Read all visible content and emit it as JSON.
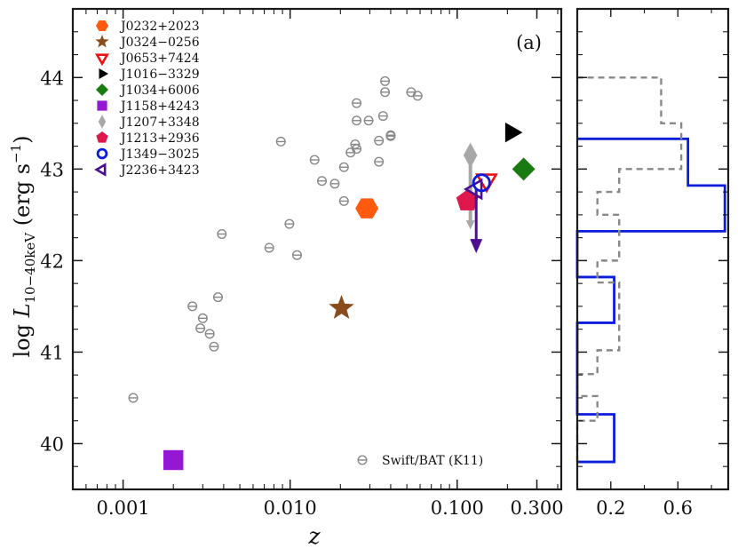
{
  "chart_data": [
    {
      "type": "scatter",
      "panel_label": "(a)",
      "xlabel": "z",
      "ylabel": "log L10−40keV (erg s−1)",
      "ylabel_parts": {
        "log": "log ",
        "L": "L",
        "sub": "10−40keV",
        "units": " (erg s",
        "exp": "−1",
        "close": ")"
      },
      "xscale": "log",
      "xlim": [
        0.0005,
        0.42
      ],
      "ylim": [
        39.5,
        44.75
      ],
      "xticks": [
        0.001,
        0.01,
        0.1,
        0.3
      ],
      "xtick_labels": [
        "0.001",
        "0.010",
        "0.100",
        "0.300"
      ],
      "yticks": [
        40,
        41,
        42,
        43,
        44
      ],
      "ytick_labels": [
        "40",
        "41",
        "42",
        "43",
        "44"
      ],
      "sources": [
        {
          "name": "J0232+2023",
          "marker": "hexagon",
          "color": "#ff5a0e",
          "z": 0.0288,
          "logL": 42.57
        },
        {
          "name": "J0324−0256",
          "marker": "star",
          "color": "#8b4c1c",
          "z": 0.0203,
          "logL": 41.48
        },
        {
          "name": "J0653+7424",
          "marker": "triangle-down-open",
          "color": "#ee1111",
          "z": 0.15,
          "logL": 42.88
        },
        {
          "name": "J1016−3329",
          "marker": "triangle-right",
          "color": "#000000",
          "z": 0.21,
          "logL": 43.4
        },
        {
          "name": "J1034+6006",
          "marker": "diamond",
          "color": "#1a7a12",
          "z": 0.25,
          "logL": 43.0
        },
        {
          "name": "J1158+4243",
          "marker": "square",
          "color": "#9417d4",
          "z": 0.002,
          "logL": 39.82
        },
        {
          "name": "J1207+3348",
          "marker": "thin-diamond",
          "color": "#a8a8a8",
          "z": 0.12,
          "logL": 43.15,
          "range": [
            42.4,
            43.2
          ]
        },
        {
          "name": "J1213+2936",
          "marker": "pentagon",
          "color": "#e0174a",
          "z": 0.115,
          "logL": 42.65
        },
        {
          "name": "J1349−3025",
          "marker": "circle-open",
          "color": "#0b1cdb",
          "z": 0.14,
          "logL": 42.85
        },
        {
          "name": "J2236+3423",
          "marker": "triangle-left-open",
          "color": "#4b0f8f",
          "z": 0.13,
          "logL": 42.78,
          "upper_to": 42.1
        }
      ],
      "swift_bat": {
        "label": "Swift/BAT (K11)",
        "color": "#888888",
        "points": [
          {
            "z": 0.00115,
            "logL": 40.5
          },
          {
            "z": 0.0026,
            "logL": 41.5
          },
          {
            "z": 0.003,
            "logL": 41.37
          },
          {
            "z": 0.0029,
            "logL": 41.26
          },
          {
            "z": 0.0033,
            "logL": 41.2
          },
          {
            "z": 0.0035,
            "logL": 41.06
          },
          {
            "z": 0.0037,
            "logL": 41.6
          },
          {
            "z": 0.0039,
            "logL": 42.29
          },
          {
            "z": 0.0075,
            "logL": 42.14
          },
          {
            "z": 0.0088,
            "logL": 43.3
          },
          {
            "z": 0.0099,
            "logL": 42.4
          },
          {
            "z": 0.011,
            "logL": 42.06
          },
          {
            "z": 0.014,
            "logL": 43.1
          },
          {
            "z": 0.0155,
            "logL": 42.87
          },
          {
            "z": 0.0185,
            "logL": 42.84
          },
          {
            "z": 0.021,
            "logL": 43.02
          },
          {
            "z": 0.021,
            "logL": 42.65
          },
          {
            "z": 0.023,
            "logL": 43.18
          },
          {
            "z": 0.025,
            "logL": 43.22
          },
          {
            "z": 0.0245,
            "logL": 43.27
          },
          {
            "z": 0.025,
            "logL": 43.72
          },
          {
            "z": 0.025,
            "logL": 43.53
          },
          {
            "z": 0.0295,
            "logL": 43.53
          },
          {
            "z": 0.034,
            "logL": 43.31
          },
          {
            "z": 0.034,
            "logL": 43.08
          },
          {
            "z": 0.036,
            "logL": 43.58
          },
          {
            "z": 0.037,
            "logL": 43.84
          },
          {
            "z": 0.037,
            "logL": 43.96
          },
          {
            "z": 0.04,
            "logL": 43.36
          },
          {
            "z": 0.04,
            "logL": 43.37
          },
          {
            "z": 0.053,
            "logL": 43.84
          },
          {
            "z": 0.058,
            "logL": 43.8
          }
        ]
      }
    },
    {
      "type": "histogram",
      "orientation": "horizontal",
      "xticks": [
        0.2,
        0.6
      ],
      "xtick_labels": [
        "0.2",
        "0.6"
      ],
      "xlim": [
        0,
        0.9
      ],
      "series": [
        {
          "name": "sample",
          "color": "#0b1cdb",
          "style": "solid",
          "bins": [
            {
              "y0": 39.8,
              "y1": 40.32,
              "value": 0.22
            },
            {
              "y0": 40.32,
              "y1": 41.32,
              "value": 0.0
            },
            {
              "y0": 41.32,
              "y1": 41.82,
              "value": 0.22
            },
            {
              "y0": 41.82,
              "y1": 42.32,
              "value": 0.0
            },
            {
              "y0": 42.32,
              "y1": 42.82,
              "value": 0.88
            },
            {
              "y0": 42.82,
              "y1": 43.33,
              "value": 0.66
            }
          ]
        },
        {
          "name": "Swift/BAT (K11)",
          "color": "#888888",
          "style": "dashed",
          "bins": [
            {
              "y0": 39.8,
              "y1": 40.25,
              "value": 0.0
            },
            {
              "y0": 40.25,
              "y1": 40.52,
              "value": 0.12
            },
            {
              "y0": 40.52,
              "y1": 40.76,
              "value": 0.0
            },
            {
              "y0": 40.76,
              "y1": 41.02,
              "value": 0.12
            },
            {
              "y0": 41.02,
              "y1": 41.76,
              "value": 0.25
            },
            {
              "y0": 41.76,
              "y1": 42.0,
              "value": 0.12
            },
            {
              "y0": 42.0,
              "y1": 42.5,
              "value": 0.25
            },
            {
              "y0": 42.5,
              "y1": 42.75,
              "value": 0.12
            },
            {
              "y0": 42.75,
              "y1": 43.0,
              "value": 0.25
            },
            {
              "y0": 43.0,
              "y1": 43.25,
              "value": 0.62
            },
            {
              "y0": 43.25,
              "y1": 43.5,
              "value": 0.62
            },
            {
              "y0": 43.5,
              "y1": 44.0,
              "value": 0.5
            }
          ]
        }
      ]
    }
  ]
}
